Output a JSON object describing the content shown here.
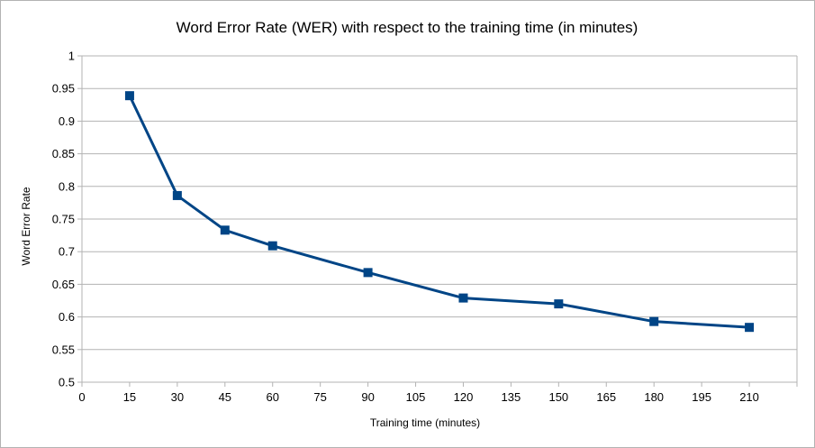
{
  "chart_data": {
    "type": "line",
    "title": "Word Error Rate (WER) with respect to the training time (in minutes)",
    "xlabel": "Training time (minutes)",
    "ylabel": "Word Error Rate",
    "xlim": [
      0,
      225
    ],
    "ylim": [
      0.5,
      1
    ],
    "x_ticks": [
      "0",
      "15",
      "30",
      "45",
      "60",
      "75",
      "90",
      "105",
      "120",
      "135",
      "150",
      "165",
      "180",
      "195",
      "210"
    ],
    "y_ticks": [
      "0.5",
      "0.55",
      "0.6",
      "0.65",
      "0.7",
      "0.75",
      "0.8",
      "0.85",
      "0.9",
      "0.95",
      "1"
    ],
    "grid": "horizontal",
    "legend": "none",
    "series": [
      {
        "color": "#004586",
        "marker": "square",
        "points": [
          {
            "x": 15,
            "y": 0.939
          },
          {
            "x": 30,
            "y": 0.786
          },
          {
            "x": 45,
            "y": 0.733
          },
          {
            "x": 60,
            "y": 0.709
          },
          {
            "x": 90,
            "y": 0.668
          },
          {
            "x": 120,
            "y": 0.629
          },
          {
            "x": 150,
            "y": 0.62
          },
          {
            "x": 180,
            "y": 0.593
          },
          {
            "x": 210,
            "y": 0.584
          }
        ]
      }
    ]
  }
}
